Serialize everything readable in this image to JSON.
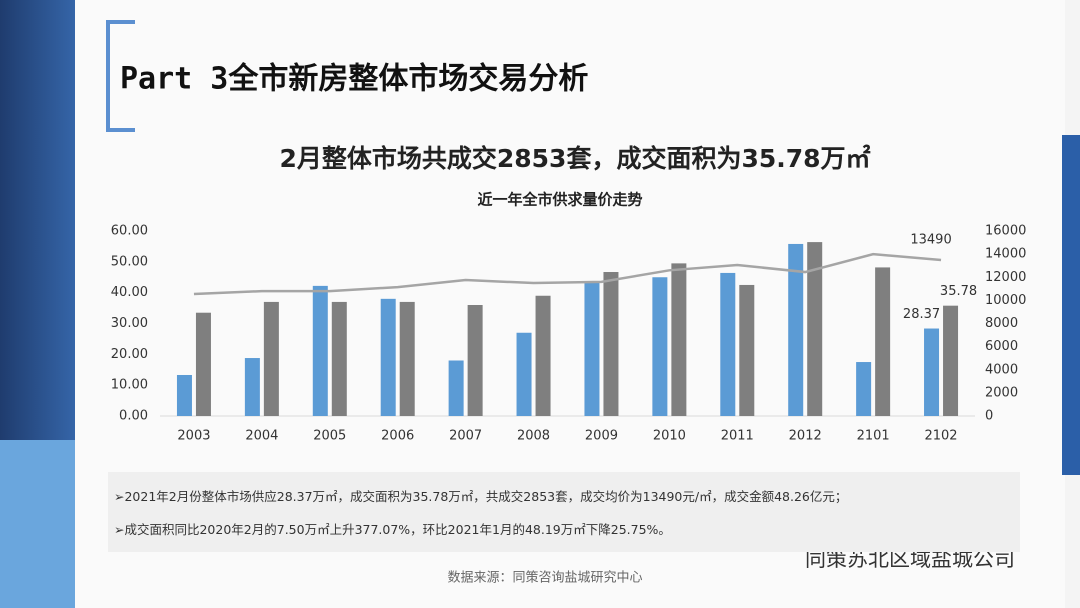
{
  "header": {
    "title": "Part 3全市新房整体市场交易分析"
  },
  "headline": "2月整体市场共成交2853套，成交面积为35.78万㎡",
  "chart_data": {
    "type": "bar",
    "title": "近一年全市供求量价走势",
    "categories": [
      "2003",
      "2004",
      "2005",
      "2006",
      "2007",
      "2008",
      "2009",
      "2010",
      "2011",
      "2012",
      "2101",
      "2102"
    ],
    "series": [
      {
        "type": "bar",
        "color": "#5b9bd5",
        "values": [
          13.3,
          18.8,
          42.2,
          38.0,
          18.0,
          27.0,
          43.5,
          45.0,
          46.4,
          55.8,
          17.5,
          28.37
        ]
      },
      {
        "type": "bar",
        "color": "#7f7f7f",
        "values": [
          33.5,
          37.0,
          37.0,
          37.0,
          36.0,
          39.0,
          46.7,
          49.5,
          42.5,
          56.4,
          48.19,
          35.78
        ]
      },
      {
        "type": "line",
        "axis": "y2",
        "color": "#a5a5a5",
        "values": [
          10550,
          10800,
          10800,
          11150,
          11760,
          11500,
          11600,
          12600,
          13060,
          12450,
          14000,
          13490
        ]
      }
    ],
    "ylim": [
      0,
      60
    ],
    "yticks": [
      {
        "value": 0,
        "label": "0.00"
      },
      {
        "value": 10,
        "label": "10.00"
      },
      {
        "value": 20,
        "label": "20.00"
      },
      {
        "value": 30,
        "label": "30.00"
      },
      {
        "value": 40,
        "label": "40.00"
      },
      {
        "value": 50,
        "label": "50.00"
      },
      {
        "value": 60,
        "label": "60.00"
      }
    ],
    "y2lim": [
      0,
      16000
    ],
    "y2ticks": [
      0,
      2000,
      4000,
      6000,
      8000,
      10000,
      12000,
      14000,
      16000
    ],
    "grid": false
  },
  "notes": [
    "➢2021年2月份整体市场供应28.37万㎡，成交面积为35.78万㎡，共成交2853套，成交均价为13490元/㎡，成交金额48.26亿元；",
    "➢成交面积同比2020年2月的7.50万㎡上升377.07%，环比2021年1月的48.19万㎡下降25.75%。"
  ],
  "source": "数据来源：同策咨询盐城研究中心",
  "watermark": "同策苏北区域盐城公司"
}
